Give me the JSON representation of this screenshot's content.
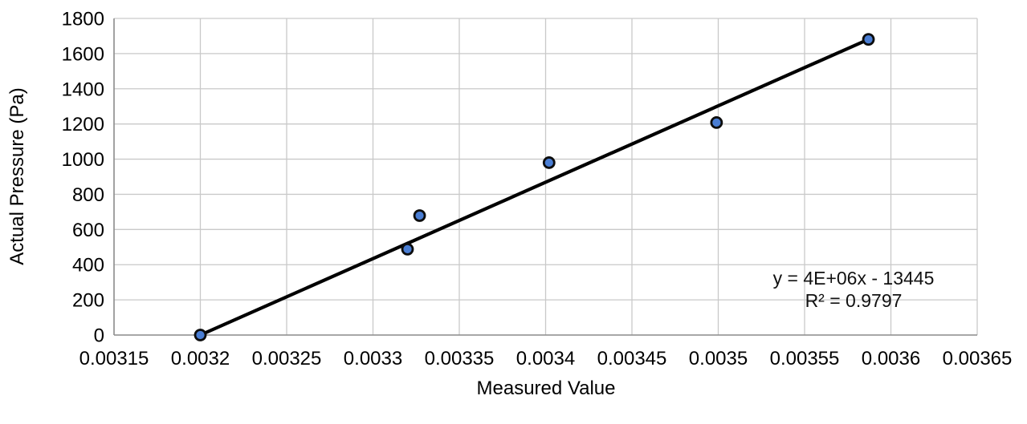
{
  "chart_data": {
    "type": "scatter",
    "title": "",
    "xlabel": "Measured Value",
    "ylabel": "Actual Pressure (Pa)",
    "xlim": [
      0.00315,
      0.00365
    ],
    "ylim": [
      0,
      1800
    ],
    "x_ticks": [
      "0.00315",
      "0.0032",
      "0.00325",
      "0.0033",
      "0.00335",
      "0.0034",
      "0.00345",
      "0.0035",
      "0.00355",
      "0.0036",
      "0.00365"
    ],
    "y_ticks": [
      "0",
      "200",
      "400",
      "600",
      "800",
      "1000",
      "1200",
      "1400",
      "1600",
      "1800"
    ],
    "grid": true,
    "legend": false,
    "series": [
      {
        "name": "scatter-points",
        "marker_fill": "#4a7ed4",
        "marker_stroke": "#0d0d0d",
        "points": [
          {
            "x": 0.0032,
            "y": 0
          },
          {
            "x": 0.00332,
            "y": 488
          },
          {
            "x": 0.003327,
            "y": 679
          },
          {
            "x": 0.003402,
            "y": 980
          },
          {
            "x": 0.003499,
            "y": 1208
          },
          {
            "x": 0.003587,
            "y": 1681
          }
        ]
      }
    ],
    "trendline": {
      "type": "linear",
      "color": "#000000",
      "equation": "y = 4E+06x - 13445",
      "r_squared": "R² = 0.9797"
    },
    "colors": {
      "gridline": "#c9c9c9",
      "axis": "#8e8e8e",
      "tick_text": "#000000"
    }
  }
}
